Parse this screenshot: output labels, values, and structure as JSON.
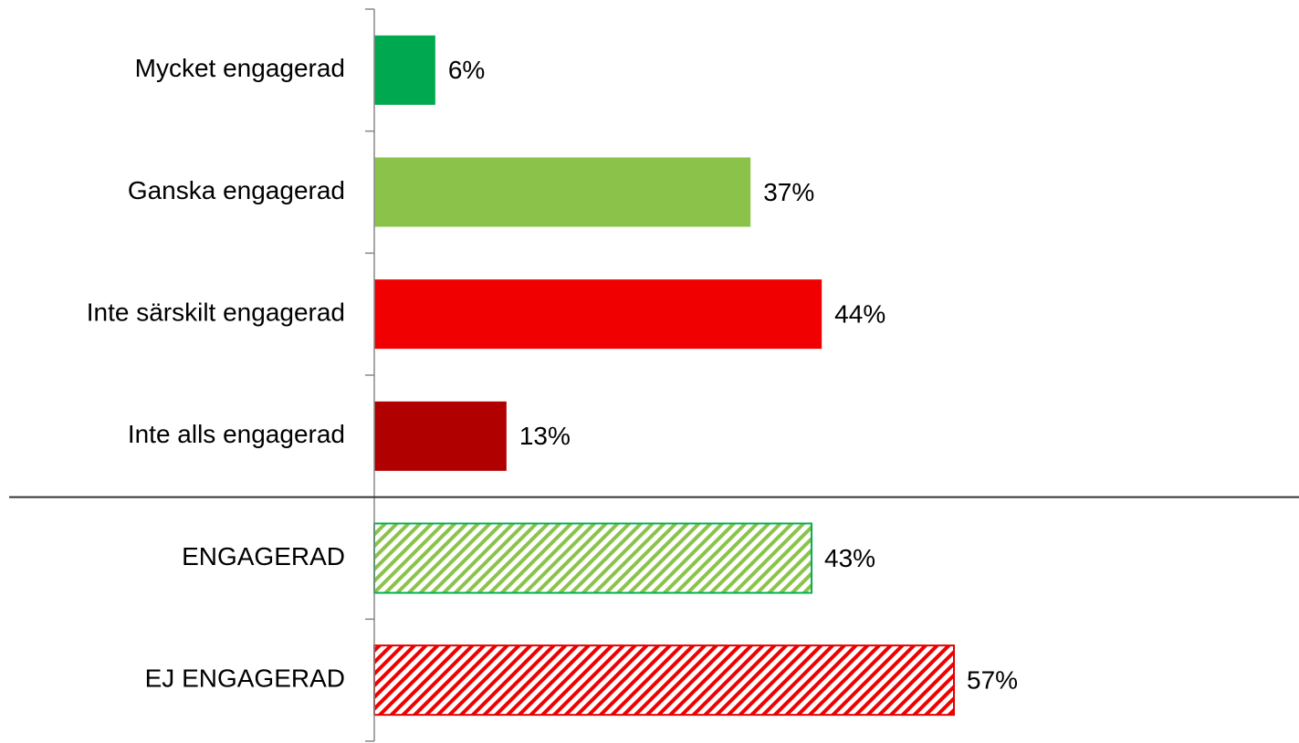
{
  "chart_data": {
    "type": "hbar",
    "categories": [
      "Mycket engagerad",
      "Ganska engagerad",
      "Inte särskilt engagerad",
      "Inte alls engagerad",
      "ENGAGERAD",
      "EJ ENGAGERAD"
    ],
    "values": [
      6,
      37,
      44,
      13,
      43,
      57
    ],
    "value_labels": [
      "6%",
      "37%",
      "44%",
      "13%",
      "43%",
      "57%"
    ],
    "colors": [
      "#00a84f",
      "#8bc34a",
      "#f00000",
      "#b00000",
      "#8bc34a",
      "#f00000"
    ],
    "hatched": [
      false,
      false,
      false,
      false,
      true,
      true
    ],
    "separator_after": 3
  }
}
